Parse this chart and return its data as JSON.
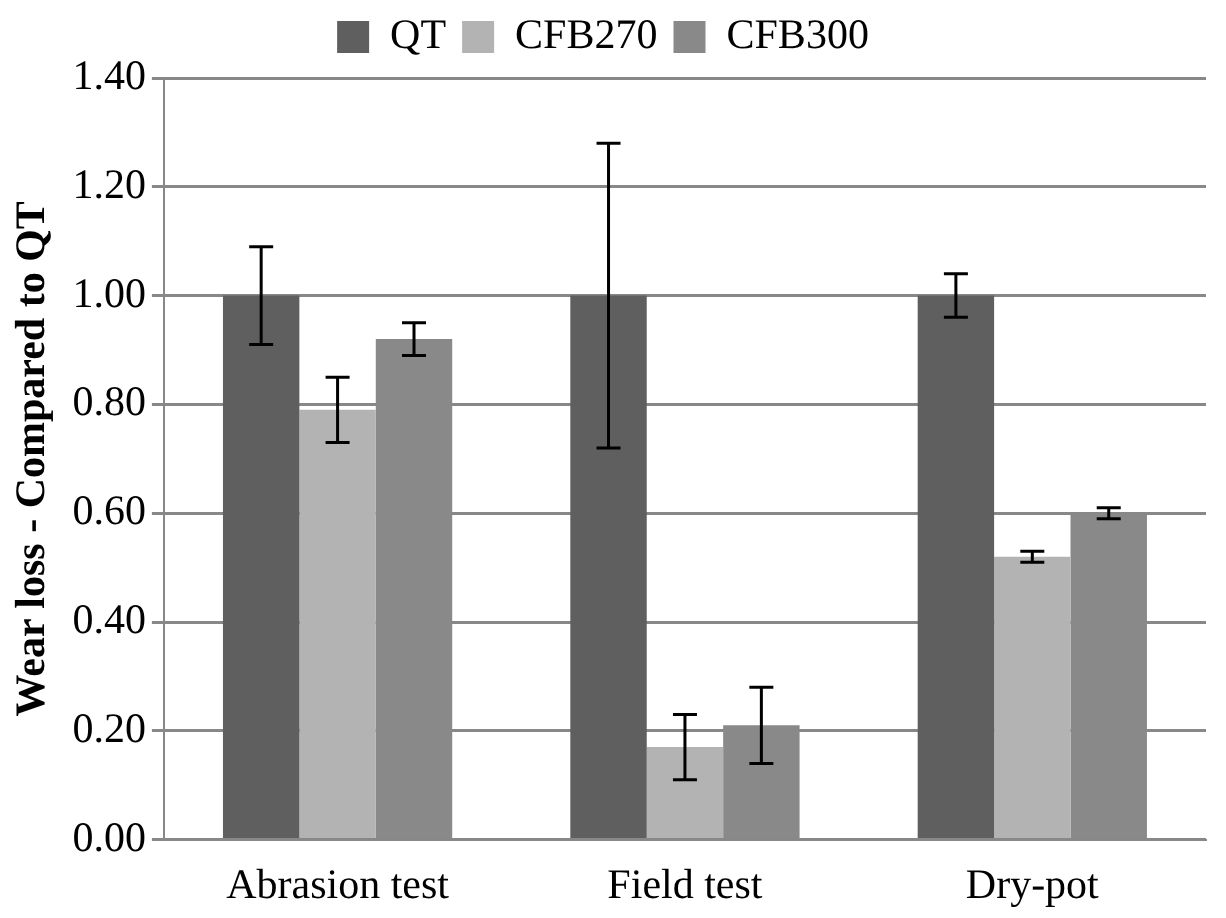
{
  "chart_data": {
    "type": "bar",
    "ylabel": "Wear loss - Compared to QT",
    "categories": [
      "Abrasion test",
      "Field test",
      "Dry-pot"
    ],
    "series": [
      {
        "name": "QT",
        "color": "#5f5f5f",
        "values": [
          1.0,
          1.0,
          1.0
        ],
        "errors": [
          0.09,
          0.28,
          0.04
        ]
      },
      {
        "name": "CFB270",
        "color": "#b3b3b3",
        "values": [
          0.79,
          0.17,
          0.52
        ],
        "errors": [
          0.06,
          0.06,
          0.01
        ]
      },
      {
        "name": "CFB300",
        "color": "#898989",
        "values": [
          0.92,
          0.21,
          0.6
        ],
        "errors": [
          0.03,
          0.07,
          0.01
        ]
      }
    ],
    "ylim": [
      0,
      1.4
    ],
    "yticks": [
      {
        "value": 0,
        "label": "0.00"
      },
      {
        "value": 0.2,
        "label": "0.20"
      },
      {
        "value": 0.4,
        "label": "0.40"
      },
      {
        "value": 0.6,
        "label": "0.60"
      },
      {
        "value": 0.8,
        "label": "0.80"
      },
      {
        "value": 1,
        "label": "1.00"
      },
      {
        "value": 1.2,
        "label": "1.20"
      },
      {
        "value": 1.4,
        "label": "1.40"
      }
    ],
    "grid": "y",
    "legend": "top"
  }
}
